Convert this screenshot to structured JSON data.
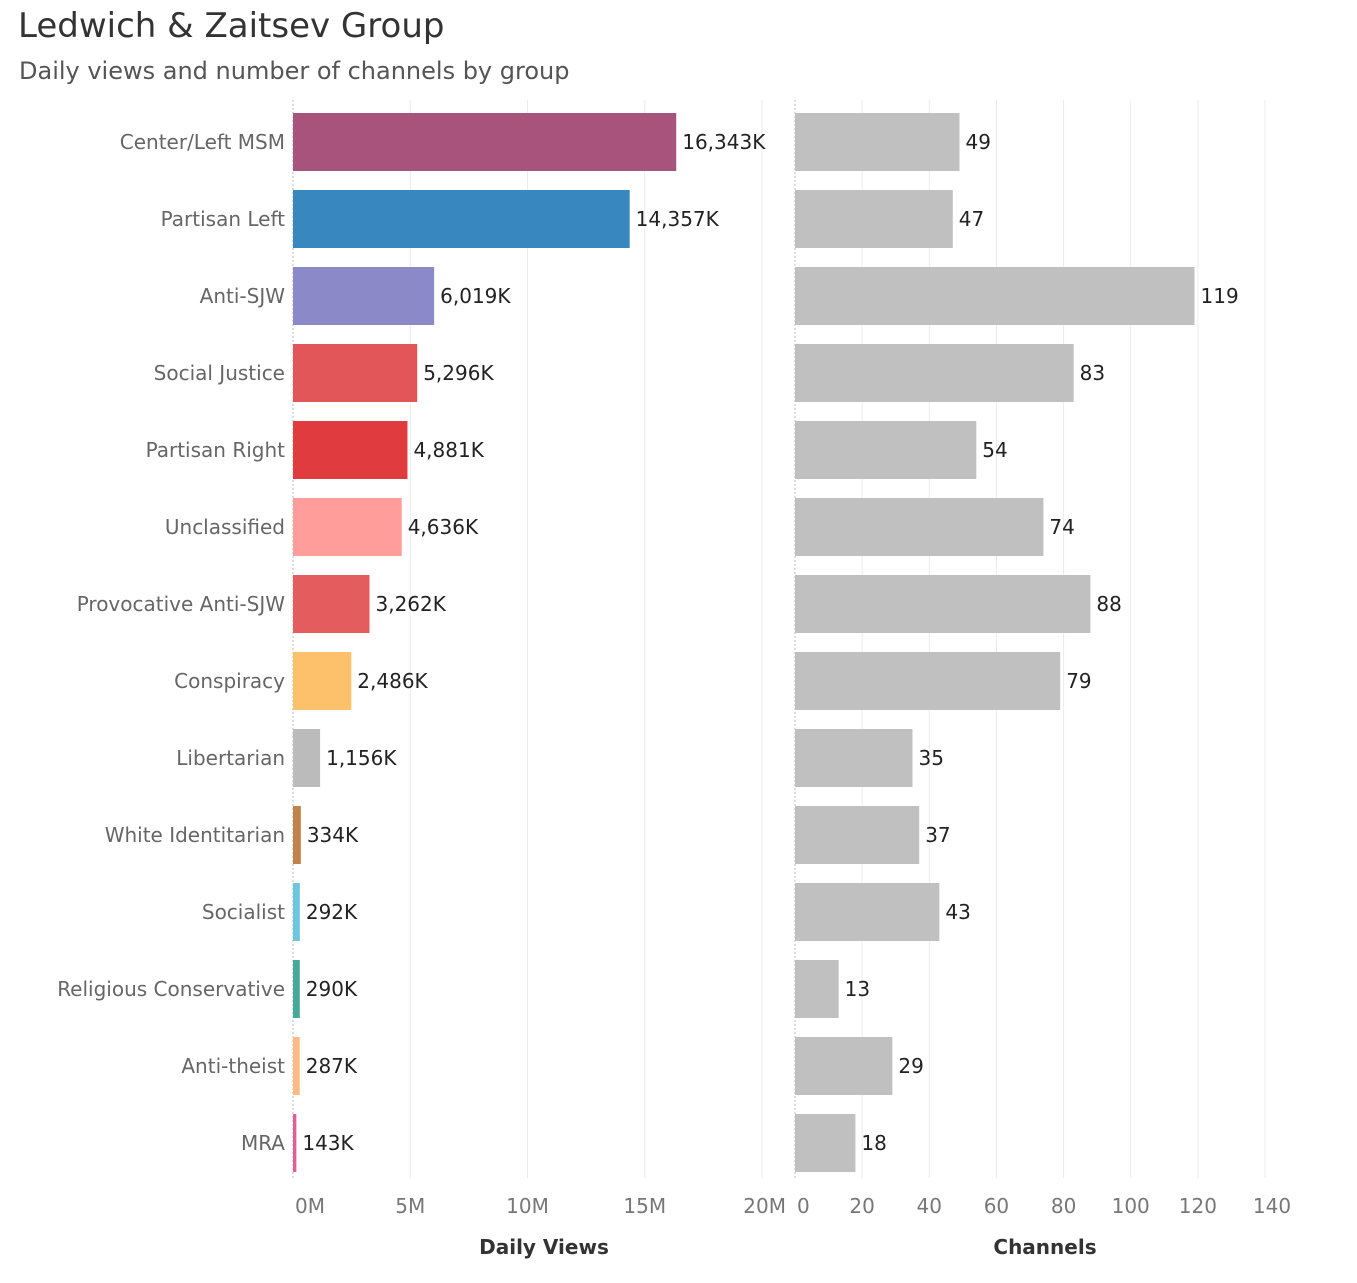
{
  "header": {
    "title": "Ledwich & Zaitsev Group",
    "subtitle": "Daily views and number of channels by group"
  },
  "chart_data": [
    {
      "type": "bar",
      "orientation": "horizontal",
      "xlabel": "Daily Views",
      "xlim": [
        0,
        20000
      ],
      "value_unit": "K",
      "ticks": [
        0,
        5000,
        10000,
        15000,
        20000
      ],
      "tick_labels": [
        "0M",
        "5M",
        "10M",
        "15M",
        "20M"
      ],
      "grid": true,
      "categories": [
        "Center/Left MSM",
        "Partisan Left",
        "Anti-SJW",
        "Social Justice",
        "Partisan Right",
        "Unclassified",
        "Provocative Anti-SJW",
        "Conspiracy",
        "Libertarian",
        "White Identitarian",
        "Socialist",
        "Religious Conservative",
        "Anti-theist",
        "MRA"
      ],
      "values": [
        16343,
        14357,
        6019,
        5296,
        4881,
        4636,
        3262,
        2486,
        1156,
        334,
        292,
        290,
        287,
        143
      ],
      "data_labels": [
        "16,343K",
        "14,357K",
        "6,019K",
        "5,296K",
        "4,881K",
        "4,636K",
        "3,262K",
        "2,486K",
        "1,156K",
        "334K",
        "292K",
        "290K",
        "287K",
        "143K"
      ],
      "colors": [
        "#A8537C",
        "#3887BE",
        "#8C89C9",
        "#E25659",
        "#E03B3F",
        "#FF9D9A",
        "#E55C5E",
        "#FDC16C",
        "#BBBBBB",
        "#C2834A",
        "#6CC5E1",
        "#45A99B",
        "#FEBB83",
        "#E45C9A"
      ]
    },
    {
      "type": "bar",
      "orientation": "horizontal",
      "xlabel": "Channels",
      "xlim": [
        0,
        140
      ],
      "ticks": [
        0,
        20,
        40,
        60,
        80,
        100,
        120,
        140
      ],
      "tick_labels": [
        "0",
        "20",
        "40",
        "60",
        "80",
        "100",
        "120",
        "140"
      ],
      "grid": true,
      "categories": [
        "Center/Left MSM",
        "Partisan Left",
        "Anti-SJW",
        "Social Justice",
        "Partisan Right",
        "Unclassified",
        "Provocative Anti-SJW",
        "Conspiracy",
        "Libertarian",
        "White Identitarian",
        "Socialist",
        "Religious Conservative",
        "Anti-theist",
        "MRA"
      ],
      "values": [
        49,
        47,
        119,
        83,
        54,
        74,
        88,
        79,
        35,
        37,
        43,
        13,
        29,
        18
      ],
      "data_labels": [
        "49",
        "47",
        "119",
        "83",
        "54",
        "74",
        "88",
        "79",
        "35",
        "37",
        "43",
        "13",
        "29",
        "18"
      ],
      "color": "#C0C0C0"
    }
  ]
}
